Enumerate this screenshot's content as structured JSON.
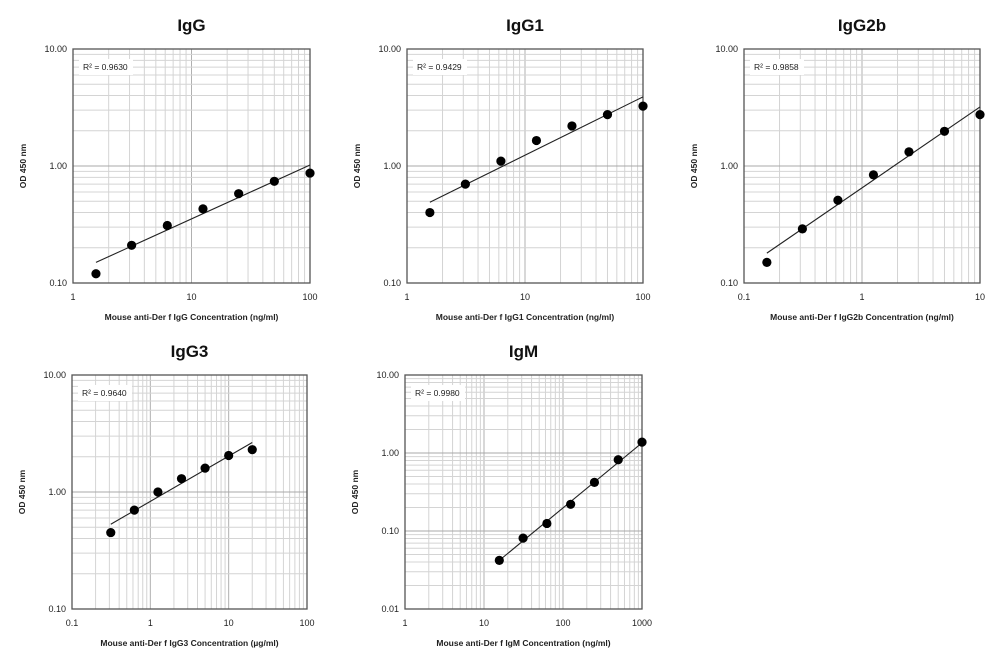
{
  "chart_data": [
    {
      "type": "scatter",
      "title": "IgG",
      "xlabel": "Mouse anti-Der f IgG Concentration (ng/ml)",
      "ylabel": "OD 450 nm",
      "xscale": "log",
      "yscale": "log",
      "xlim": [
        1,
        100
      ],
      "ylim": [
        0.1,
        10
      ],
      "xticks": [
        "1",
        "10",
        "100"
      ],
      "yticks": [
        "0.10",
        "1.00",
        "10.00"
      ],
      "grid": true,
      "annotation": "R² = 0.9630",
      "points": {
        "x": [
          1.5625,
          3.125,
          6.25,
          12.5,
          25,
          50,
          100
        ],
        "y": [
          0.12,
          0.21,
          0.31,
          0.43,
          0.58,
          0.74,
          0.87
        ]
      },
      "trendline": {
        "x": [
          1.5625,
          100
        ],
        "y": [
          0.15,
          1.02
        ]
      }
    },
    {
      "type": "scatter",
      "title": "IgG1",
      "xlabel": "Mouse anti-Der f IgG1 Concentration (ng/ml)",
      "ylabel": "OD 450 nm",
      "xscale": "log",
      "yscale": "log",
      "xlim": [
        1,
        100
      ],
      "ylim": [
        0.1,
        10
      ],
      "xticks": [
        "1",
        "10",
        "100"
      ],
      "yticks": [
        "0.10",
        "1.00",
        "10.00"
      ],
      "grid": true,
      "annotation": "R² = 0.9429",
      "points": {
        "x": [
          1.5625,
          3.125,
          6.25,
          12.5,
          25,
          50,
          100
        ],
        "y": [
          0.4,
          0.7,
          1.1,
          1.65,
          2.2,
          2.75,
          3.25
        ]
      },
      "trendline": {
        "x": [
          1.5625,
          100
        ],
        "y": [
          0.49,
          3.9
        ]
      }
    },
    {
      "type": "scatter",
      "title": "IgG2b",
      "xlabel": "Mouse anti-Der f IgG2b Concentration (ng/ml)",
      "ylabel": "OD 450 nm",
      "xscale": "log",
      "yscale": "log",
      "xlim": [
        0.1,
        10
      ],
      "ylim": [
        0.1,
        10
      ],
      "xticks": [
        "0.1",
        "1",
        "10"
      ],
      "yticks": [
        "0.10",
        "1.00",
        "10.00"
      ],
      "grid": true,
      "annotation": "R² = 0.9858",
      "points": {
        "x": [
          0.15625,
          0.3125,
          0.625,
          1.25,
          2.5,
          5,
          10
        ],
        "y": [
          0.15,
          0.29,
          0.51,
          0.84,
          1.32,
          1.98,
          2.75
        ]
      },
      "trendline": {
        "x": [
          0.15625,
          10
        ],
        "y": [
          0.18,
          3.2
        ]
      }
    },
    {
      "type": "scatter",
      "title": "IgG3",
      "xlabel": "Mouse anti-Der f IgG3 Concentration (µg/ml)",
      "ylabel": "OD 450 nm",
      "xscale": "log",
      "yscale": "log",
      "xlim": [
        0.1,
        100
      ],
      "ylim": [
        0.1,
        10
      ],
      "xticks": [
        "0.1",
        "1",
        "10",
        "100"
      ],
      "yticks": [
        "0.10",
        "1.00",
        "10.00"
      ],
      "grid": true,
      "annotation": "R² = 0.9640",
      "points": {
        "x": [
          0.3125,
          0.625,
          1.25,
          2.5,
          5,
          10,
          20
        ],
        "y": [
          0.45,
          0.7,
          1.0,
          1.3,
          1.6,
          2.05,
          2.3
        ]
      },
      "trendline": {
        "x": [
          0.3125,
          20
        ],
        "y": [
          0.53,
          2.65
        ]
      }
    },
    {
      "type": "scatter",
      "title": "IgM",
      "xlabel": "Mouse anti-Der f IgM Concentration (ng/ml)",
      "ylabel": "OD 450 nm",
      "xscale": "log",
      "yscale": "log",
      "xlim": [
        1,
        1000
      ],
      "ylim": [
        0.01,
        10
      ],
      "xticks": [
        "1",
        "10",
        "100",
        "1000"
      ],
      "yticks": [
        "0.01",
        "0.10",
        "1.00",
        "10.00"
      ],
      "grid": true,
      "annotation": "R² = 0.9980",
      "points": {
        "x": [
          15.625,
          31.25,
          62.5,
          125,
          250,
          500,
          1000
        ],
        "y": [
          0.042,
          0.081,
          0.125,
          0.22,
          0.42,
          0.82,
          1.38
        ]
      },
      "trendline": {
        "x": [
          15.625,
          1000
        ],
        "y": [
          0.042,
          1.35
        ]
      }
    }
  ]
}
